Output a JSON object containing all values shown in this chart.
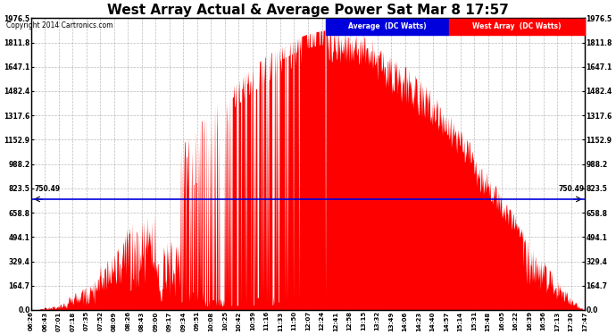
{
  "title": "West Array Actual & Average Power Sat Mar 8 17:57",
  "copyright": "Copyright 2014 Cartronics.com",
  "legend_avg_label": "Average  (DC Watts)",
  "legend_west_label": "West Array  (DC Watts)",
  "avg_color": "#0000dd",
  "west_color": "#ff0000",
  "avg_line_value": 750.49,
  "avg_line_label": "750.49",
  "ymin": 0.0,
  "ymax": 1976.5,
  "yticks": [
    0.0,
    164.7,
    329.4,
    494.1,
    658.8,
    823.5,
    988.2,
    1152.9,
    1317.6,
    1482.4,
    1647.1,
    1811.8,
    1976.5
  ],
  "background_color": "#ffffff",
  "plot_bg_color": "#ffffff",
  "grid_color": "#aaaaaa",
  "title_fontsize": 11,
  "xtick_labels": [
    "06:26",
    "06:43",
    "07:01",
    "07:18",
    "07:35",
    "07:52",
    "08:09",
    "08:26",
    "08:43",
    "09:00",
    "09:17",
    "09:34",
    "09:51",
    "10:08",
    "10:25",
    "10:42",
    "10:59",
    "11:16",
    "11:33",
    "11:50",
    "12:07",
    "12:24",
    "12:41",
    "12:58",
    "13:15",
    "13:32",
    "13:49",
    "14:06",
    "14:23",
    "14:40",
    "14:57",
    "15:14",
    "15:31",
    "15:48",
    "16:05",
    "16:22",
    "16:39",
    "16:56",
    "17:13",
    "17:30",
    "17:47"
  ]
}
